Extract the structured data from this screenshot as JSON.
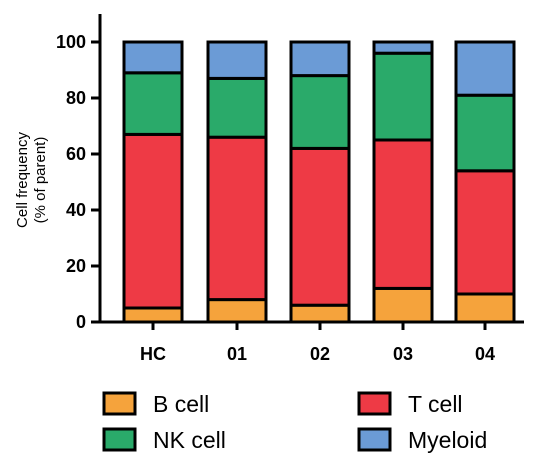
{
  "chart_data": {
    "type": "bar",
    "stacked": true,
    "categories": [
      "HC",
      "01",
      "02",
      "03",
      "04"
    ],
    "series": [
      {
        "name": "B cell",
        "color": "#f5a33c",
        "values": [
          5,
          8,
          6,
          12,
          10
        ]
      },
      {
        "name": "T cell",
        "color": "#ee3a45",
        "values": [
          62,
          58,
          56,
          53,
          44
        ]
      },
      {
        "name": "NK cell",
        "color": "#2aaa6a",
        "values": [
          22,
          21,
          26,
          31,
          27
        ]
      },
      {
        "name": "Myeloid",
        "color": "#6b9bd6",
        "values": [
          11,
          13,
          12,
          4,
          19
        ]
      }
    ],
    "xlabel": "",
    "ylabel": [
      "Cell frequency",
      "(% of parent)"
    ],
    "ylim": [
      0,
      100
    ],
    "yticks": [
      0,
      20,
      40,
      60,
      80,
      100
    ],
    "grid": false,
    "legend_position": "bottom"
  }
}
